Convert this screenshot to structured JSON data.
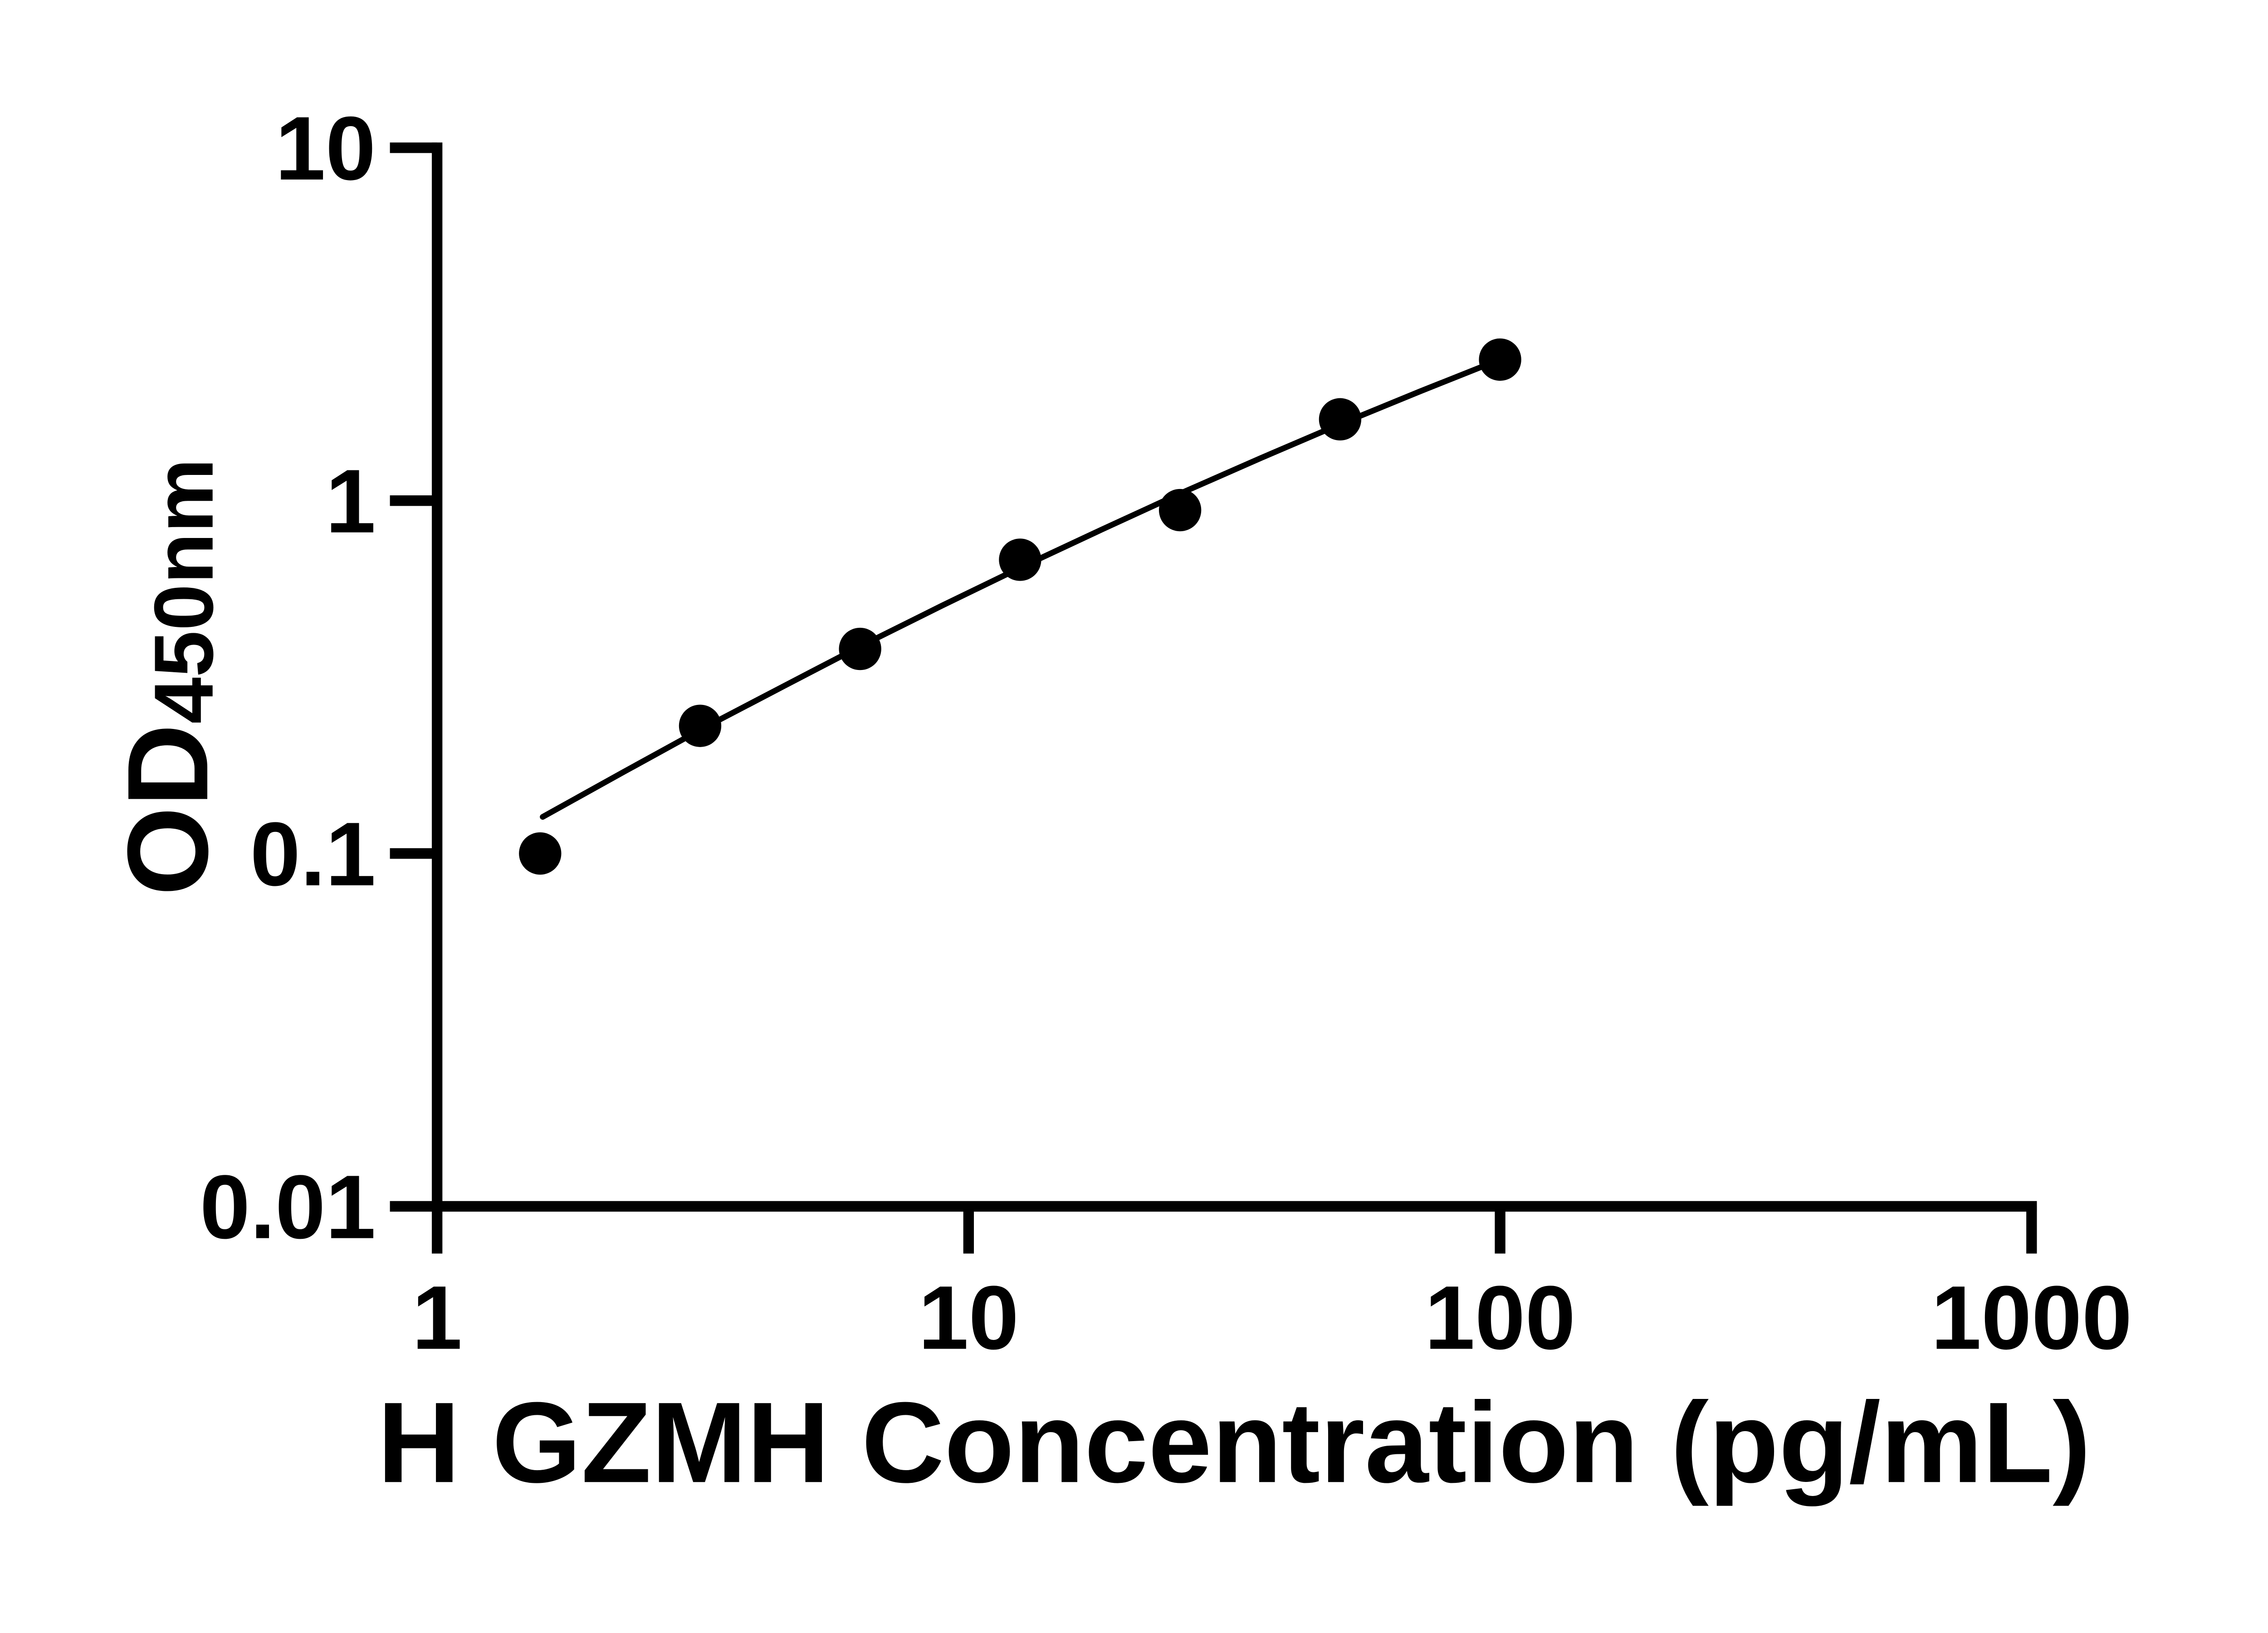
{
  "figure": {
    "background_color": "#ffffff",
    "ink_color": "#000000"
  },
  "chart_data": {
    "type": "scatter",
    "title": "",
    "xlabel": "H GZMH Concentration (pg/mL)",
    "ylabel_main": "OD",
    "ylabel_subscript": "450nm",
    "x_scale": "log",
    "y_scale": "log",
    "xlim": [
      1,
      1000
    ],
    "ylim": [
      0.01,
      10
    ],
    "grid": "off",
    "legend": "none",
    "x_ticks": [
      {
        "value": 1,
        "label": "1"
      },
      {
        "value": 10,
        "label": "10"
      },
      {
        "value": 100,
        "label": "100"
      },
      {
        "value": 1000,
        "label": "1000"
      }
    ],
    "y_ticks": [
      {
        "value": 10,
        "label": "10"
      },
      {
        "value": 1,
        "label": "1"
      },
      {
        "value": 0.1,
        "label": "0.1"
      },
      {
        "value": 0.01,
        "label": "0.01"
      }
    ],
    "series": [
      {
        "name": "standard-curve-points",
        "marker": "filled-circle",
        "color": "#000000",
        "points": [
          {
            "x": 1.5625,
            "y": 0.1
          },
          {
            "x": 3.125,
            "y": 0.23
          },
          {
            "x": 6.25,
            "y": 0.38
          },
          {
            "x": 12.5,
            "y": 0.68
          },
          {
            "x": 25,
            "y": 0.94
          },
          {
            "x": 50,
            "y": 1.7
          },
          {
            "x": 100,
            "y": 2.51
          }
        ]
      }
    ],
    "trend_line": {
      "name": "fitted-standard-curve",
      "color": "#000000",
      "points": [
        [
          1.58,
          0.127
        ],
        [
          2.24,
          0.17
        ],
        [
          3.16,
          0.226
        ],
        [
          4.47,
          0.297
        ],
        [
          6.31,
          0.389
        ],
        [
          8.91,
          0.504
        ],
        [
          12.6,
          0.649
        ],
        [
          17.8,
          0.828
        ],
        [
          25.1,
          1.05
        ],
        [
          35.5,
          1.321
        ],
        [
          50.1,
          1.649
        ],
        [
          70.8,
          2.042
        ],
        [
          100.0,
          2.512
        ]
      ]
    }
  }
}
